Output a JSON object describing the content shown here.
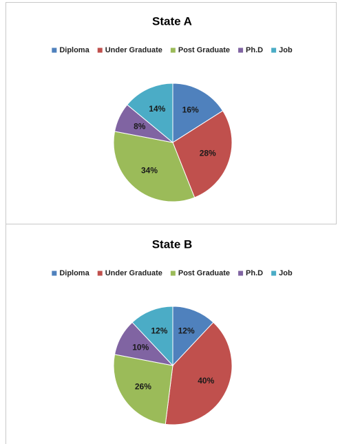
{
  "chart_data": [
    {
      "type": "pie",
      "title": "State A",
      "categories": [
        "Diploma",
        "Under Graduate",
        "Post Graduate",
        "Ph.D",
        "Job"
      ],
      "values": [
        16,
        28,
        34,
        8,
        14
      ],
      "value_labels": [
        "16%",
        "28%",
        "34%",
        "8%",
        "14%"
      ],
      "colors": [
        "#4f81bd",
        "#c0504d",
        "#9bbb59",
        "#8064a2",
        "#4bacc6"
      ],
      "legend": "top"
    },
    {
      "type": "pie",
      "title": "State B",
      "categories": [
        "Diploma",
        "Under Graduate",
        "Post Graduate",
        "Ph.D",
        "Job"
      ],
      "values": [
        12,
        40,
        26,
        10,
        12
      ],
      "value_labels": [
        "12%",
        "40%",
        "26%",
        "10%",
        "12%"
      ],
      "colors": [
        "#4f81bd",
        "#c0504d",
        "#9bbb59",
        "#8064a2",
        "#4bacc6"
      ],
      "legend": "top"
    }
  ]
}
